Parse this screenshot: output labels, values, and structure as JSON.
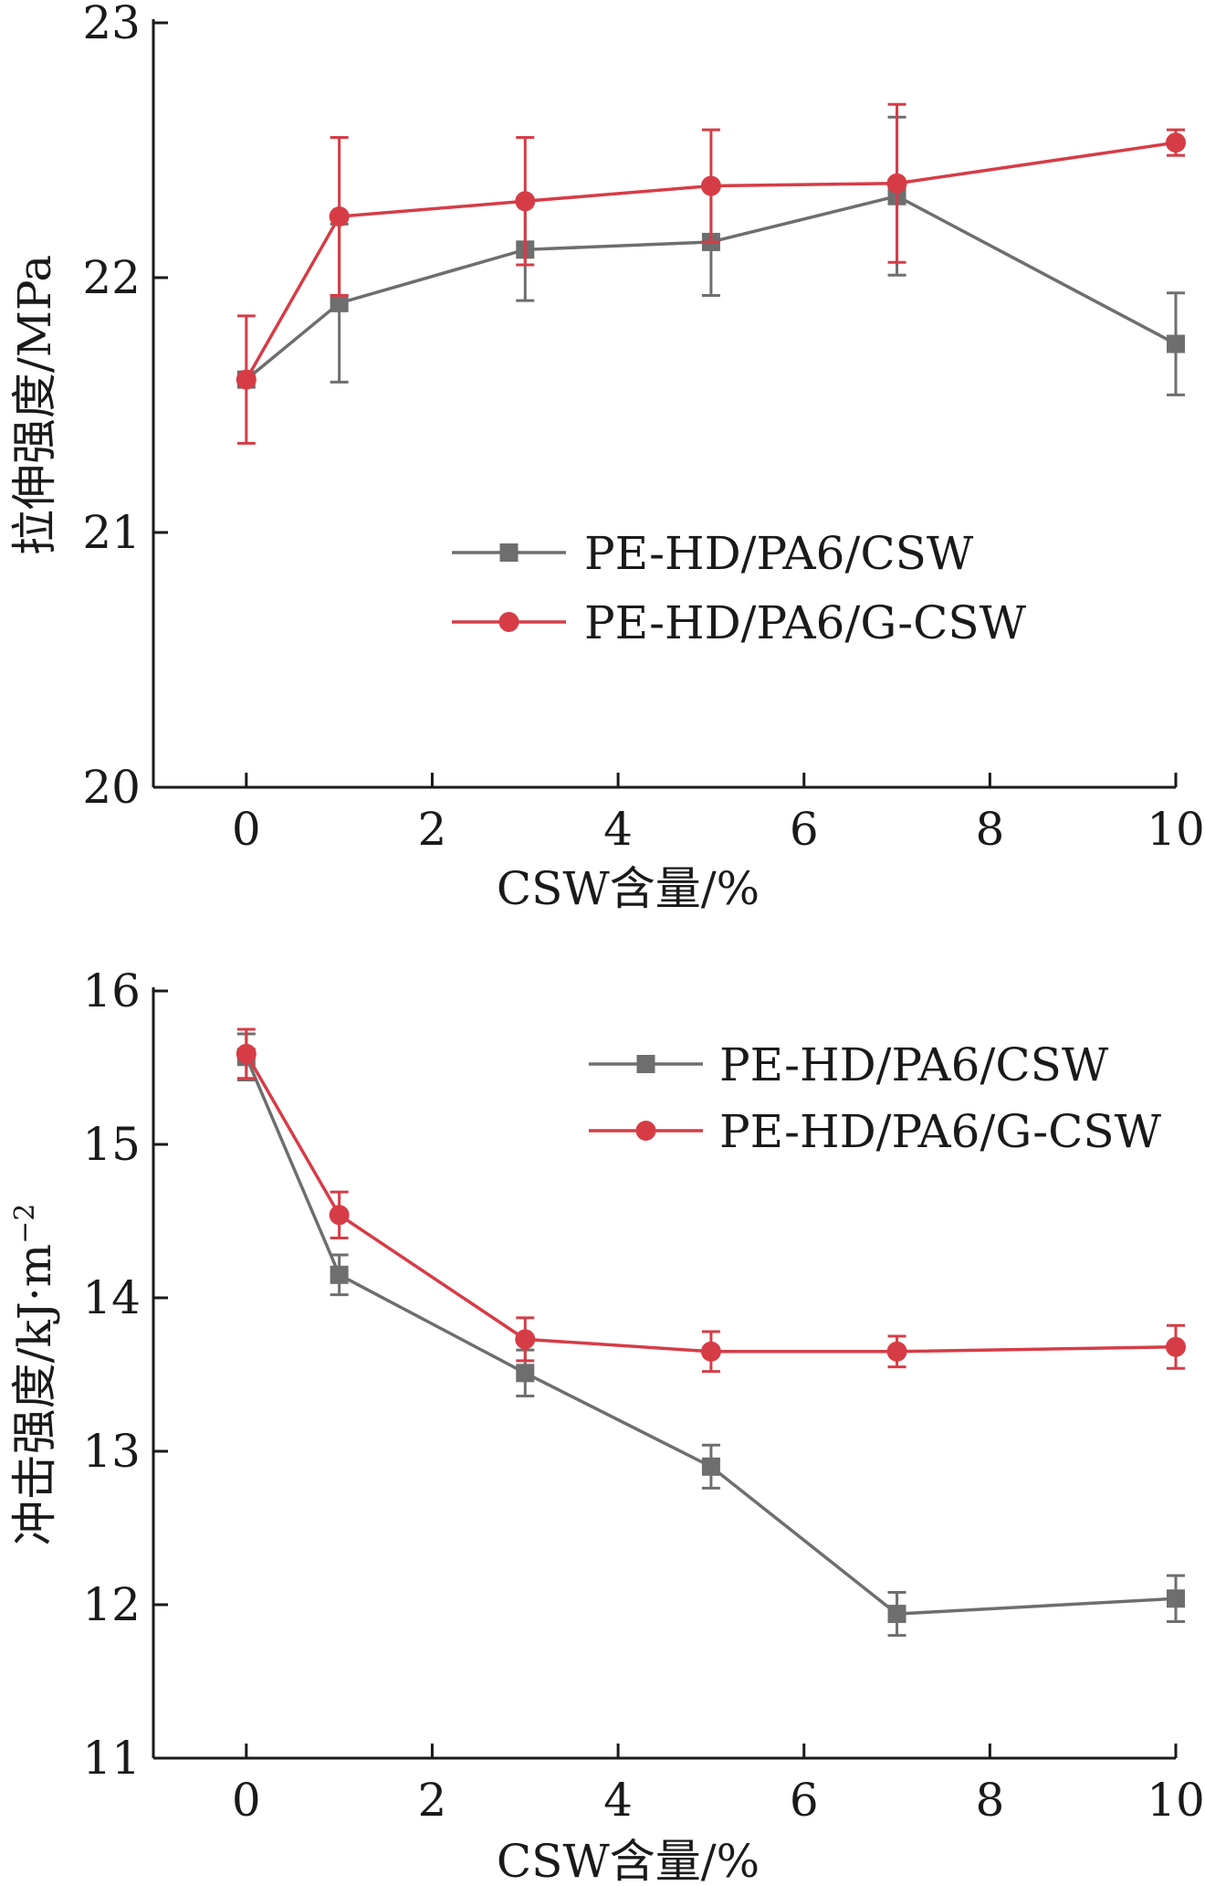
{
  "chart_data": [
    {
      "type": "line",
      "xlabel": "CSW含量/%",
      "ylabel": "拉伸强度/MPa",
      "xlim": [
        -1,
        10
      ],
      "ylim": [
        20,
        23
      ],
      "xticks": [
        "0",
        "2",
        "4",
        "6",
        "8",
        "10"
      ],
      "yticks": [
        "20",
        "21",
        "22",
        "23"
      ],
      "legend_position": "center-right",
      "series": [
        {
          "name": "PE-HD/PA6/CSW",
          "color": "#6e6e6e",
          "marker": "square",
          "x": [
            0,
            1,
            3,
            5,
            7,
            10
          ],
          "y": [
            21.6,
            21.9,
            22.11,
            22.14,
            22.32,
            21.74
          ],
          "error": [
            0.0,
            0.31,
            0.2,
            0.21,
            0.31,
            0.2
          ]
        },
        {
          "name": "PE-HD/PA6/G-CSW",
          "color": "#d63c46",
          "marker": "circle",
          "x": [
            0,
            1,
            3,
            5,
            7,
            10
          ],
          "y": [
            21.6,
            22.24,
            22.3,
            22.36,
            22.37,
            22.53
          ],
          "error": [
            0.25,
            0.31,
            0.25,
            0.22,
            0.31,
            0.05
          ]
        }
      ]
    },
    {
      "type": "line",
      "xlabel": "CSW含量/%",
      "ylabel": "冲击强度/kJ·m",
      "ylabel_sup": "−2",
      "xlim": [
        -1,
        10
      ],
      "ylim": [
        11,
        16
      ],
      "xticks": [
        "0",
        "2",
        "4",
        "6",
        "8",
        "10"
      ],
      "yticks": [
        "11",
        "12",
        "13",
        "14",
        "15",
        "16"
      ],
      "legend_position": "top-right",
      "series": [
        {
          "name": "PE-HD/PA6/CSW",
          "color": "#6e6e6e",
          "marker": "square",
          "x": [
            0,
            1,
            3,
            5,
            7,
            10
          ],
          "y": [
            15.57,
            14.15,
            13.51,
            12.9,
            11.94,
            12.04
          ],
          "error": [
            0.15,
            0.13,
            0.15,
            0.14,
            0.14,
            0.15
          ]
        },
        {
          "name": "PE-HD/PA6/G-CSW",
          "color": "#d63c46",
          "marker": "circle",
          "x": [
            0,
            1,
            3,
            5,
            7,
            10
          ],
          "y": [
            15.59,
            14.54,
            13.73,
            13.65,
            13.65,
            13.68
          ],
          "error": [
            0.16,
            0.15,
            0.14,
            0.13,
            0.1,
            0.14
          ]
        }
      ]
    }
  ]
}
